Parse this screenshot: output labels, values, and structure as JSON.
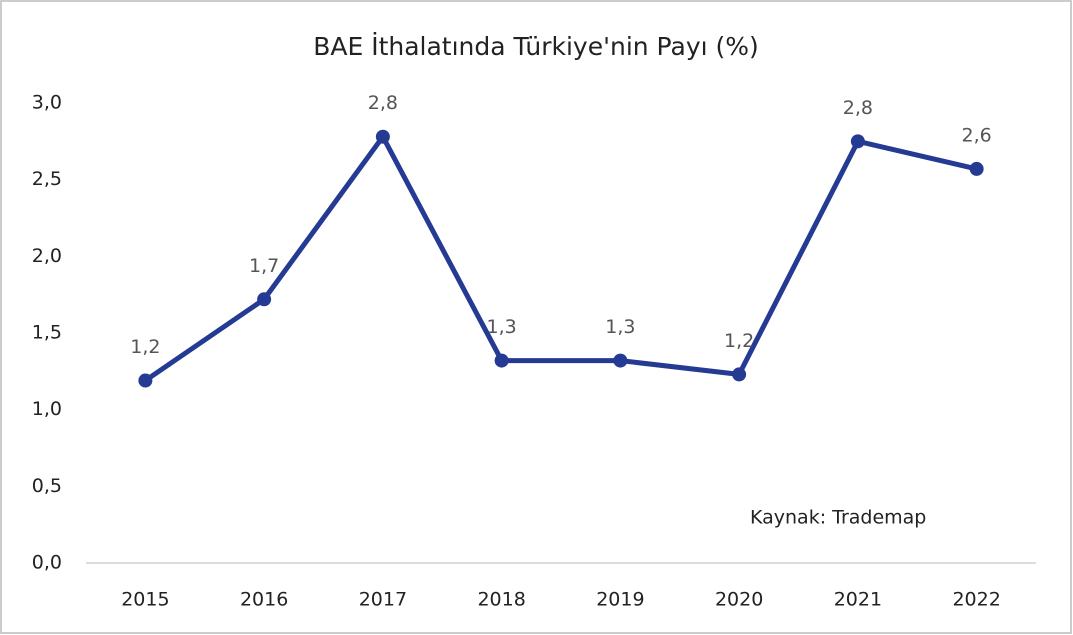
{
  "chart_data": {
    "type": "line",
    "title": "BAE İthalatında Türkiye'nin Payı (%)",
    "categories": [
      "2015",
      "2016",
      "2017",
      "2018",
      "2019",
      "2020",
      "2021",
      "2022"
    ],
    "series": [
      {
        "name": "BAE İthalatında Türkiye'nin Payı (%)",
        "color": "#253a93",
        "values": [
          1.19,
          1.72,
          2.78,
          1.32,
          1.32,
          1.23,
          2.75,
          2.57
        ],
        "value_labels": [
          "1,2",
          "1,7",
          "2,8",
          "1,3",
          "1,3",
          "1,2",
          "2,8",
          "2,6"
        ]
      }
    ],
    "ylim": [
      0,
      3
    ],
    "yticks": [
      {
        "value": 0,
        "label": "0,0"
      },
      {
        "value": 0.5,
        "label": "0,5"
      },
      {
        "value": 1,
        "label": "1,0"
      },
      {
        "value": 1.5,
        "label": "1,5"
      },
      {
        "value": 2,
        "label": "2,0"
      },
      {
        "value": 2.5,
        "label": "2,5"
      },
      {
        "value": 3,
        "label": "3,0"
      }
    ],
    "grid": false,
    "annotation": "Kaynak: Trademap"
  }
}
